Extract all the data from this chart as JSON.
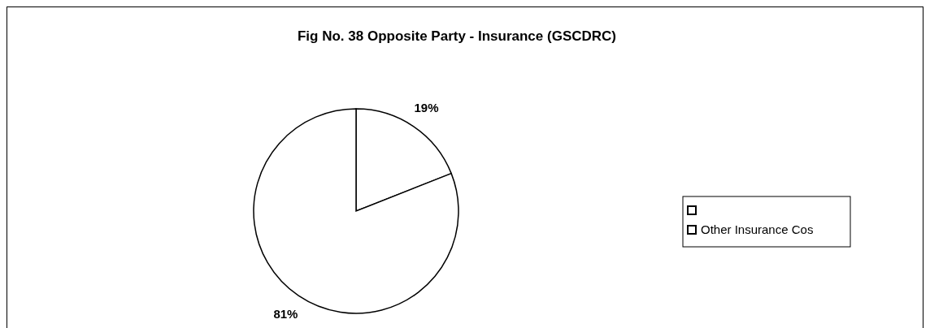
{
  "chart_data": {
    "type": "pie",
    "title": "Fig No. 38 Opposite Party - Insurance (GSCDRC)",
    "categories": [
      null,
      "Other Insurance Cos"
    ],
    "values": [
      19,
      81
    ],
    "colors": [
      "#ffffff",
      "#ffffff"
    ],
    "value_labels": [
      "19%",
      "81%"
    ],
    "legend": "right"
  }
}
